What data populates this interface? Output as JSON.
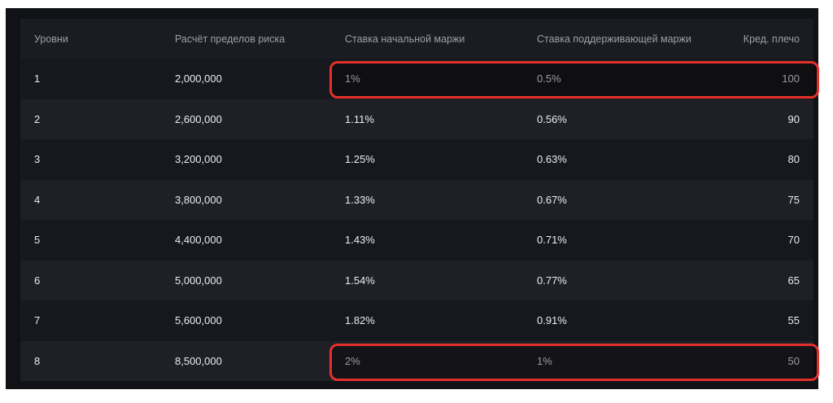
{
  "table": {
    "headers": [
      "Уровни",
      "Расчёт пределов риска",
      "Ставка начальной маржи",
      "Ставка поддерживающей маржи",
      "Кред. плечо"
    ],
    "rows": [
      [
        "1",
        "2,000,000",
        "1%",
        "0.5%",
        "100"
      ],
      [
        "2",
        "2,600,000",
        "1.11%",
        "0.56%",
        "90"
      ],
      [
        "3",
        "3,200,000",
        "1.25%",
        "0.63%",
        "80"
      ],
      [
        "4",
        "3,800,000",
        "1.33%",
        "0.67%",
        "75"
      ],
      [
        "5",
        "4,400,000",
        "1.43%",
        "0.71%",
        "70"
      ],
      [
        "6",
        "5,000,000",
        "1.54%",
        "0.77%",
        "65"
      ],
      [
        "7",
        "5,600,000",
        "1.82%",
        "0.91%",
        "55"
      ],
      [
        "8",
        "8,500,000",
        "2%",
        "1%",
        "50"
      ]
    ]
  },
  "highlights": {
    "color": "#e4302b",
    "rows": [
      "1",
      "8"
    ]
  }
}
